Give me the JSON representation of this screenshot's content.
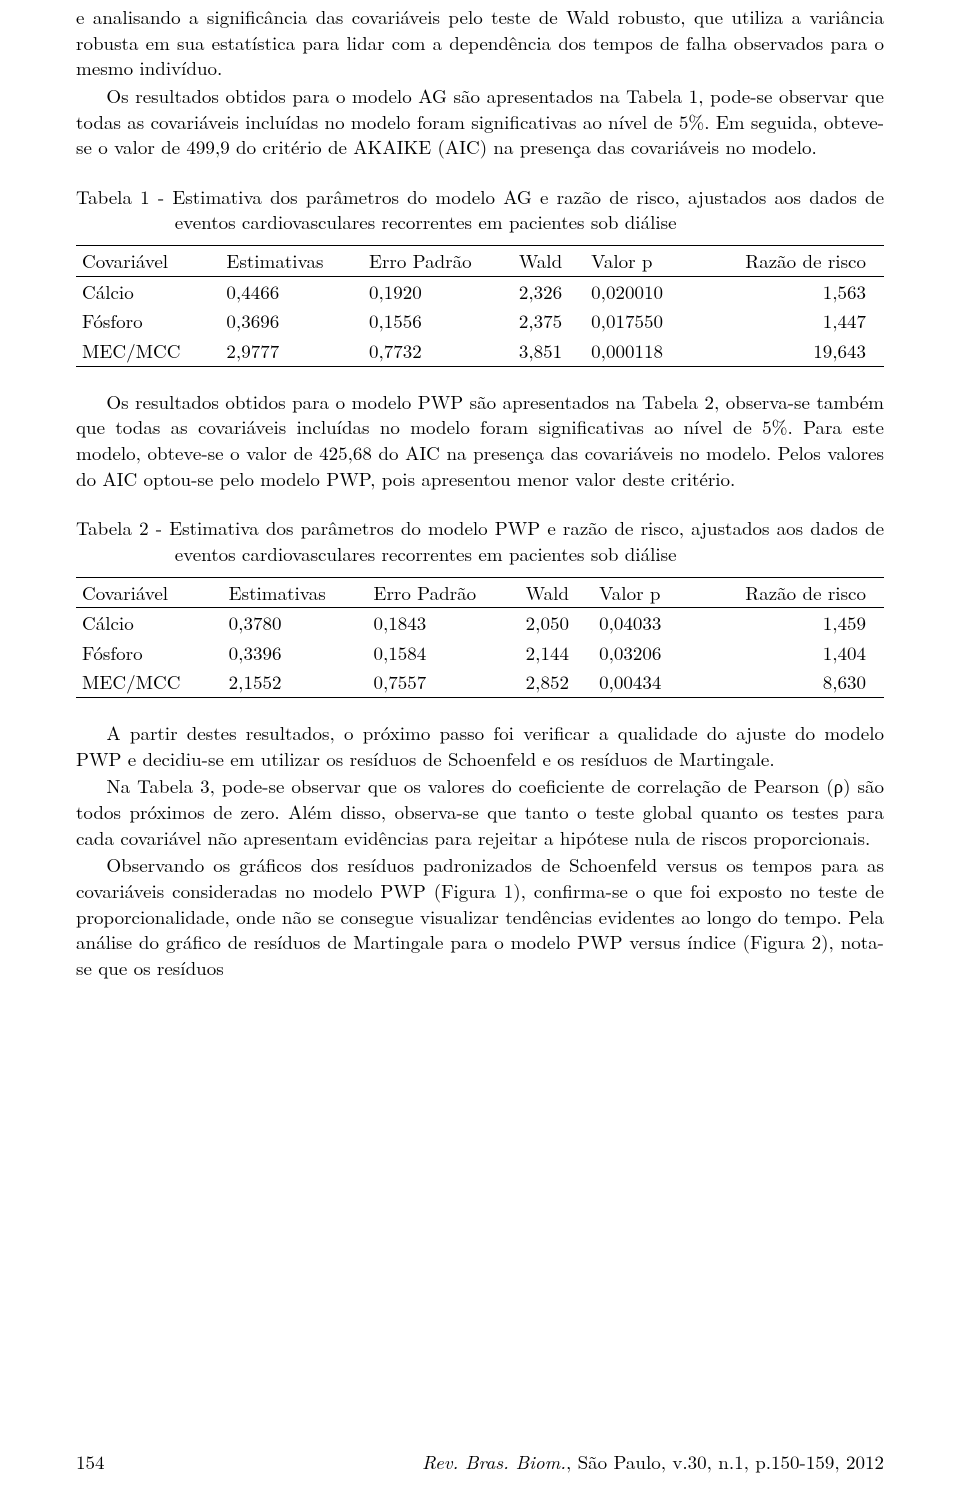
{
  "typography": {
    "font_family": "Latin Modern Roman / CMU Serif / Times",
    "body_fontsize_pt": 12,
    "line_height": 1.35,
    "text_color": "#000000",
    "background_color": "#ffffff",
    "rule_color": "#000000"
  },
  "paras": {
    "p1": "e analisando a significância das covariáveis pelo teste de Wald robusto, que utiliza a variância robusta em sua estatística para lidar com a dependência dos tempos de falha observados para o mesmo indivíduo.",
    "p2": "Os resultados obtidos para o modelo AG são apresentados na Tabela 1, pode-se observar que todas as covariáveis incluídas no modelo foram significativas ao nível de 5%. Em seguida, obteve-se o valor de 499,9 do critério de AKAIKE (AIC) na presença das covariáveis no modelo.",
    "p3": "Os resultados obtidos para o modelo PWP são apresentados na Tabela 2, observa-se também que todas as covariáveis incluídas no modelo foram significativas ao nível de 5%. Para este modelo, obteve-se o valor de 425,68 do AIC na presença das covariáveis no modelo. Pelos valores do AIC optou-se pelo modelo PWP, pois apresentou menor valor deste critério.",
    "p4": "A partir destes resultados, o próximo passo foi verificar a qualidade do ajuste do modelo PWP e decidiu-se em utilizar os resíduos de Schoenfeld e os resíduos de Martingale.",
    "p5": "Na Tabela 3, pode-se observar que os valores do coeficiente de correlação de Pearson (ρ) são todos próximos de zero. Além disso, observa-se que tanto o teste global quanto os testes para cada covariável não apresentam evidências para rejeitar a hipótese nula de riscos proporcionais.",
    "p6": "Observando os gráficos dos resíduos padronizados de Schoenfeld versus os tempos para as covariáveis consideradas no modelo PWP (Figura 1), confirma-se o que foi exposto no teste de proporcionalidade, onde não se consegue visualizar tendências evidentes ao longo do tempo. Pela análise do gráfico de resíduos de Martingale para o modelo PWP versus índice (Figura 2), nota-se que os resíduos"
  },
  "table1": {
    "type": "table",
    "caption_lead": "Tabela 1 - ",
    "caption_rest": "Estimativa dos parâmetros do modelo AG e razão de risco, ajustados aos dados de eventos cardiovasculares recorrentes em pacientes sob diálise",
    "columns": [
      "Covariável",
      "Estimativas",
      "Erro Padrão",
      "Wald",
      "Valor p",
      "Razão de risco"
    ],
    "rows": [
      [
        "Cálcio",
        "0,4466",
        "0,1920",
        "2,326",
        "0,020010",
        "1,563"
      ],
      [
        "Fósforo",
        "0,3696",
        "0,1556",
        "2,375",
        "0,017550",
        "1,447"
      ],
      [
        "MEC/MCC",
        "2,9777",
        "0,7732",
        "3,851",
        "0,000118",
        "19,643"
      ]
    ],
    "col_align": [
      "left",
      "left",
      "left",
      "left",
      "left",
      "right"
    ],
    "border_top": "#000000",
    "border_mid": "#000000",
    "border_bottom": "#000000"
  },
  "table2": {
    "type": "table",
    "caption_lead": "Tabela 2 - ",
    "caption_rest": "Estimativa dos parâmetros do modelo PWP e razão de risco, ajustados aos dados de eventos cardiovasculares recorrentes em pacientes sob diálise",
    "columns": [
      "Covariável",
      "Estimativas",
      "Erro Padrão",
      "Wald",
      "Valor p",
      "Razão de risco"
    ],
    "rows": [
      [
        "Cálcio",
        "0,3780",
        "0,1843",
        "2,050",
        "0,04033",
        "1,459"
      ],
      [
        "Fósforo",
        "0,3396",
        "0,1584",
        "2,144",
        "0,03206",
        "1,404"
      ],
      [
        "MEC/MCC",
        "2,1552",
        "0,7557",
        "2,852",
        "0,00434",
        "8,630"
      ]
    ],
    "col_align": [
      "left",
      "left",
      "left",
      "left",
      "left",
      "right"
    ],
    "border_top": "#000000",
    "border_mid": "#000000",
    "border_bottom": "#000000"
  },
  "footer": {
    "page_number": "154",
    "journal_italic": "Rev. Bras. Biom.",
    "loc_vol": ", São Paulo, v.30, n.1, p.150-159, 2012"
  }
}
